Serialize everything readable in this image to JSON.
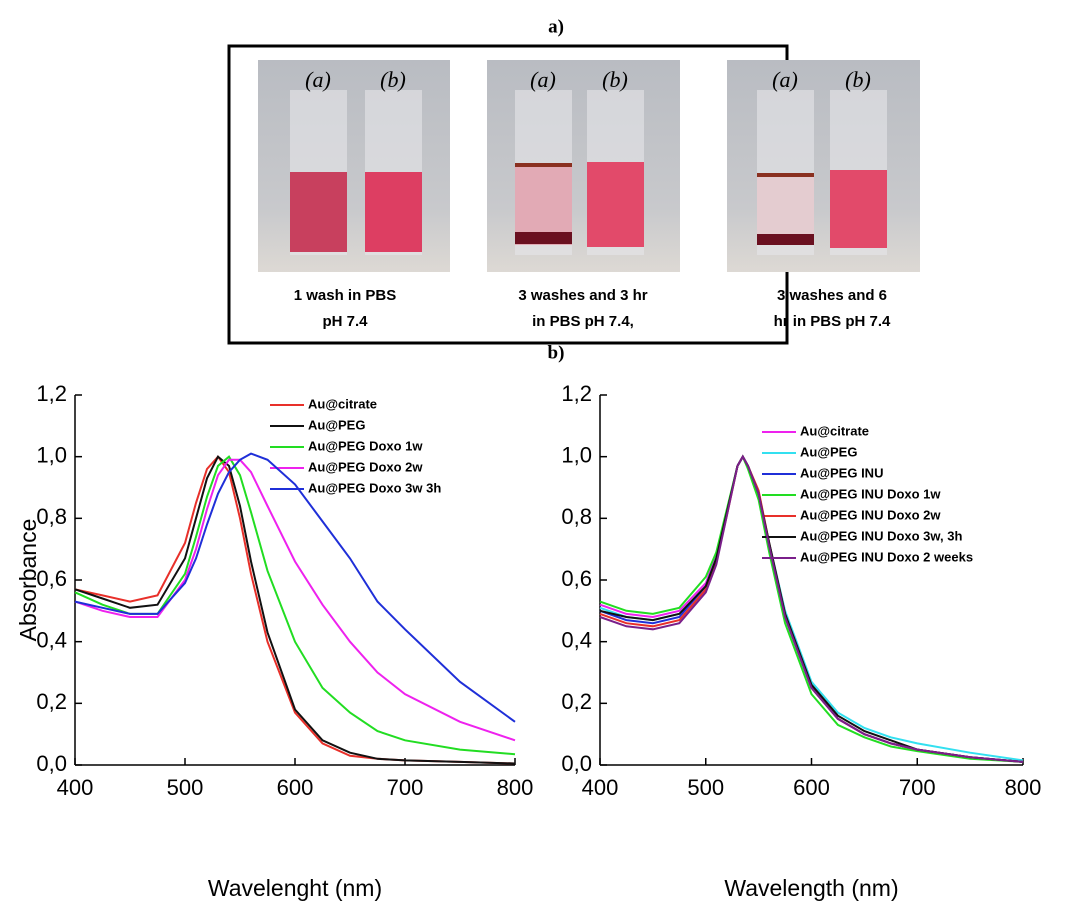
{
  "figure": {
    "panel_a": "a)",
    "panel_b": "b)",
    "tube_labels": [
      "(a)",
      "(b)"
    ],
    "photos": [
      {
        "caption": [
          "1 wash in PBS",
          "pH 7.4"
        ]
      },
      {
        "caption": [
          "3 washes and 3 hr",
          "in PBS pH 7.4,"
        ]
      },
      {
        "caption": [
          "3 washes and 6",
          "hr in PBS pH 7.4"
        ]
      }
    ]
  },
  "chart_data": [
    {
      "type": "line",
      "xlabel": "Wavelenght (nm)",
      "ylabel": "Absorbance",
      "x": [
        400,
        425,
        450,
        475,
        500,
        510,
        520,
        530,
        540,
        550,
        560,
        575,
        600,
        625,
        650,
        675,
        700,
        750,
        800
      ],
      "xlim": [
        400,
        800
      ],
      "xticks": [
        400,
        500,
        600,
        700,
        800
      ],
      "ylim": [
        0,
        1.2
      ],
      "yticks": [
        {
          "value": 0,
          "label": "0,0"
        },
        {
          "value": 0.2,
          "label": "0,2"
        },
        {
          "value": 0.4,
          "label": "0,4"
        },
        {
          "value": 0.6,
          "label": "0,6"
        },
        {
          "value": 0.8,
          "label": "0,8"
        },
        {
          "value": 1.0,
          "label": "1,0"
        },
        {
          "value": 1.2,
          "label": "1,2"
        }
      ],
      "series": [
        {
          "name": "Au@citrate",
          "color": "#e8302a",
          "values": [
            0.57,
            0.55,
            0.53,
            0.55,
            0.72,
            0.85,
            0.96,
            1.0,
            0.95,
            0.8,
            0.62,
            0.4,
            0.17,
            0.07,
            0.03,
            0.02,
            0.015,
            0.01,
            0.005
          ]
        },
        {
          "name": "Au@PEG",
          "color": "#111111",
          "values": [
            0.57,
            0.54,
            0.51,
            0.52,
            0.67,
            0.8,
            0.93,
            1.0,
            0.97,
            0.84,
            0.66,
            0.43,
            0.18,
            0.08,
            0.04,
            0.02,
            0.015,
            0.01,
            0.005
          ]
        },
        {
          "name": "Au@PEG Doxo 1w",
          "color": "#22dd22",
          "values": [
            0.56,
            0.52,
            0.49,
            0.49,
            0.62,
            0.74,
            0.87,
            0.97,
            1.0,
            0.94,
            0.82,
            0.63,
            0.4,
            0.25,
            0.17,
            0.11,
            0.08,
            0.05,
            0.035
          ]
        },
        {
          "name": "Au@PEG Doxo 2w",
          "color": "#ee22ee",
          "values": [
            0.53,
            0.5,
            0.48,
            0.48,
            0.6,
            0.7,
            0.83,
            0.94,
            0.99,
            0.99,
            0.95,
            0.84,
            0.66,
            0.52,
            0.4,
            0.3,
            0.23,
            0.14,
            0.08
          ]
        },
        {
          "name": "Au@PEG Doxo 3w 3h",
          "color": "#1f2fd8",
          "values": [
            0.53,
            0.51,
            0.49,
            0.49,
            0.59,
            0.67,
            0.78,
            0.88,
            0.95,
            0.99,
            1.01,
            0.99,
            0.91,
            0.79,
            0.67,
            0.53,
            0.44,
            0.27,
            0.14
          ]
        }
      ]
    },
    {
      "type": "line",
      "xlabel": "Wavelength (nm)",
      "x": [
        400,
        425,
        450,
        475,
        500,
        510,
        520,
        530,
        535,
        540,
        550,
        560,
        575,
        600,
        625,
        650,
        675,
        700,
        750,
        800
      ],
      "xlim": [
        400,
        800
      ],
      "xticks": [
        400,
        500,
        600,
        700,
        800
      ],
      "ylim": [
        0,
        1.2
      ],
      "yticks": [
        {
          "value": 0,
          "label": "0,0"
        },
        {
          "value": 0.2,
          "label": "0,2"
        },
        {
          "value": 0.4,
          "label": "0,4"
        },
        {
          "value": 0.6,
          "label": "0,6"
        },
        {
          "value": 0.8,
          "label": "0,8"
        },
        {
          "value": 1.0,
          "label": "1,0"
        },
        {
          "value": 1.2,
          "label": "1,2"
        }
      ],
      "series": [
        {
          "name": "Au@citrate",
          "color": "#ee22ee",
          "values": [
            0.52,
            0.49,
            0.48,
            0.5,
            0.59,
            0.68,
            0.82,
            0.97,
            1.0,
            0.97,
            0.88,
            0.71,
            0.48,
            0.25,
            0.15,
            0.1,
            0.07,
            0.05,
            0.025,
            0.01
          ]
        },
        {
          "name": "Au@PEG",
          "color": "#33e0f0",
          "values": [
            0.51,
            0.48,
            0.47,
            0.49,
            0.58,
            0.67,
            0.82,
            0.97,
            1.0,
            0.97,
            0.88,
            0.72,
            0.5,
            0.27,
            0.17,
            0.12,
            0.09,
            0.07,
            0.04,
            0.015
          ]
        },
        {
          "name": "Au@PEG INU",
          "color": "#1f2fd8",
          "values": [
            0.5,
            0.47,
            0.46,
            0.48,
            0.58,
            0.67,
            0.82,
            0.97,
            1.0,
            0.97,
            0.88,
            0.71,
            0.48,
            0.25,
            0.15,
            0.1,
            0.07,
            0.05,
            0.025,
            0.01
          ]
        },
        {
          "name": "Au@PEG INU Doxo 1w",
          "color": "#22dd22",
          "values": [
            0.53,
            0.5,
            0.49,
            0.51,
            0.61,
            0.69,
            0.83,
            0.97,
            1.0,
            0.96,
            0.86,
            0.69,
            0.46,
            0.23,
            0.13,
            0.09,
            0.06,
            0.045,
            0.02,
            0.01
          ]
        },
        {
          "name": "Au@PEG INU Doxo 2w",
          "color": "#e8302a",
          "values": [
            0.49,
            0.46,
            0.45,
            0.47,
            0.57,
            0.66,
            0.81,
            0.97,
            1.0,
            0.97,
            0.89,
            0.72,
            0.49,
            0.25,
            0.15,
            0.1,
            0.07,
            0.05,
            0.025,
            0.01
          ]
        },
        {
          "name": "Au@PEG INU Doxo 3w, 3h",
          "color": "#111111",
          "values": [
            0.5,
            0.48,
            0.47,
            0.49,
            0.58,
            0.67,
            0.82,
            0.97,
            1.0,
            0.97,
            0.88,
            0.72,
            0.49,
            0.26,
            0.16,
            0.11,
            0.08,
            0.05,
            0.025,
            0.01
          ]
        },
        {
          "name": "Au@PEG INU Doxo 2 weeks",
          "color": "#7a1f8a",
          "values": [
            0.48,
            0.45,
            0.44,
            0.46,
            0.56,
            0.65,
            0.81,
            0.97,
            1.0,
            0.97,
            0.88,
            0.71,
            0.48,
            0.25,
            0.15,
            0.1,
            0.07,
            0.05,
            0.025,
            0.01
          ]
        }
      ]
    }
  ]
}
